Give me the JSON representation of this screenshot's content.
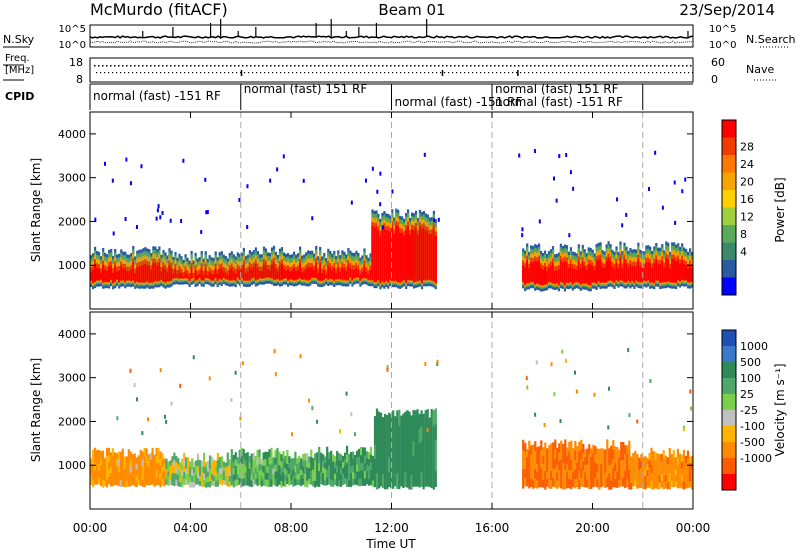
{
  "header": {
    "site": "McMurdo (fitACF)",
    "beam": "Beam 01",
    "date": "23/Sep/2014"
  },
  "left_labels": {
    "nsky": "N.Sky",
    "freq_top": "Freq.",
    "freq_unit": "[MHz]",
    "cpid": "CPID"
  },
  "right_labels": {
    "nsearch": "N.Search",
    "nave": "Nave"
  },
  "noise_axis": {
    "left_ticks": [
      "10^5",
      "10^0"
    ],
    "right_ticks": [
      "10^5",
      "10^0"
    ]
  },
  "freq_axis": {
    "left_ticks": [
      "18",
      "8"
    ],
    "right_ticks": [
      "60",
      "0"
    ]
  },
  "cpid_segments": [
    {
      "start_hour": 0.0,
      "end_hour": 6.0,
      "label": "normal (fast) -151 RF"
    },
    {
      "start_hour": 6.0,
      "end_hour": 12.0,
      "label": "normal (fast) 151 RF"
    },
    {
      "start_hour": 12.0,
      "end_hour": 16.0,
      "label": "normal (fast) -151 RF"
    },
    {
      "start_hour": 16.0,
      "end_hour": 22.0,
      "label": "normal (fast) 151 RF"
    },
    {
      "start_hour": 16.0,
      "end_hour": 22.0,
      "label": "normal (fast) -151 RF"
    }
  ],
  "chart_data": [
    {
      "type": "heatmap",
      "name": "power",
      "ylabel": "Slant Range [km]",
      "xlabel": "Time UT",
      "xlim": [
        0,
        24
      ],
      "ylim": [
        0,
        4500
      ],
      "y_ticks": [
        1000,
        2000,
        3000,
        4000
      ],
      "colorbar": {
        "label": "Power [dB]",
        "ticks": [
          "28",
          "24",
          "20",
          "16",
          "12",
          "8",
          "4"
        ],
        "colors": [
          "#ff0000",
          "#f03c00",
          "#ff7800",
          "#f5a500",
          "#ffd000",
          "#a0d040",
          "#5aaa5a",
          "#3a8a6a",
          "#2a5aa0",
          "#0000ff"
        ]
      },
      "echo_regions": [
        {
          "t0": 0.0,
          "t1": 3.2,
          "r0": 450,
          "r1": 1450,
          "peak_db": 28
        },
        {
          "t0": 3.2,
          "t1": 6.0,
          "r0": 500,
          "r1": 1350,
          "peak_db": 28
        },
        {
          "t0": 6.0,
          "t1": 9.2,
          "r0": 500,
          "r1": 1450,
          "peak_db": 30
        },
        {
          "t0": 9.2,
          "t1": 11.2,
          "r0": 500,
          "r1": 1400,
          "peak_db": 28
        },
        {
          "t0": 11.2,
          "t1": 13.8,
          "r0": 450,
          "r1": 2300,
          "peak_db": 28
        },
        {
          "t0": 17.2,
          "t1": 20.2,
          "r0": 400,
          "r1": 1500,
          "peak_db": 30
        },
        {
          "t0": 20.2,
          "t1": 24.0,
          "r0": 450,
          "r1": 1550,
          "peak_db": 28
        }
      ]
    },
    {
      "type": "heatmap",
      "name": "velocity",
      "ylabel": "Slant Range [km]",
      "xlabel": "Time UT",
      "xlim": [
        0,
        24
      ],
      "ylim": [
        0,
        4500
      ],
      "y_ticks": [
        1000,
        2000,
        3000,
        4000
      ],
      "x_ticks": [
        "00:00",
        "04:00",
        "08:00",
        "12:00",
        "16:00",
        "20:00",
        "00:00"
      ],
      "colorbar": {
        "label": "Velocity [m s⁻¹]",
        "ticks": [
          "1000",
          "500",
          "100",
          "25",
          "-25",
          "-100",
          "-500",
          "-1000"
        ],
        "colors": [
          "#1e50b4",
          "#3c78c8",
          "#2e8a58",
          "#4fa86a",
          "#7ad04a",
          "#c0c0c0",
          "#ffb400",
          "#ff8c00",
          "#ff5a00",
          "#ff0000"
        ]
      },
      "echo_regions": [
        {
          "t0": 0.0,
          "t1": 3.0,
          "r0": 500,
          "r1": 1400,
          "velocity": -150
        },
        {
          "t0": 3.0,
          "t1": 5.6,
          "r0": 500,
          "r1": 1300,
          "velocity": 50
        },
        {
          "t0": 5.6,
          "t1": 9.0,
          "r0": 500,
          "r1": 1400,
          "velocity": 150
        },
        {
          "t0": 9.0,
          "t1": 11.3,
          "r0": 500,
          "r1": 1450,
          "velocity": 200
        },
        {
          "t0": 11.3,
          "t1": 13.8,
          "r0": 450,
          "r1": 2300,
          "velocity": 300
        },
        {
          "t0": 17.2,
          "t1": 21.5,
          "r0": 450,
          "r1": 1600,
          "velocity": -300
        },
        {
          "t0": 21.5,
          "t1": 24.0,
          "r0": 450,
          "r1": 1400,
          "velocity": -200
        }
      ]
    }
  ]
}
